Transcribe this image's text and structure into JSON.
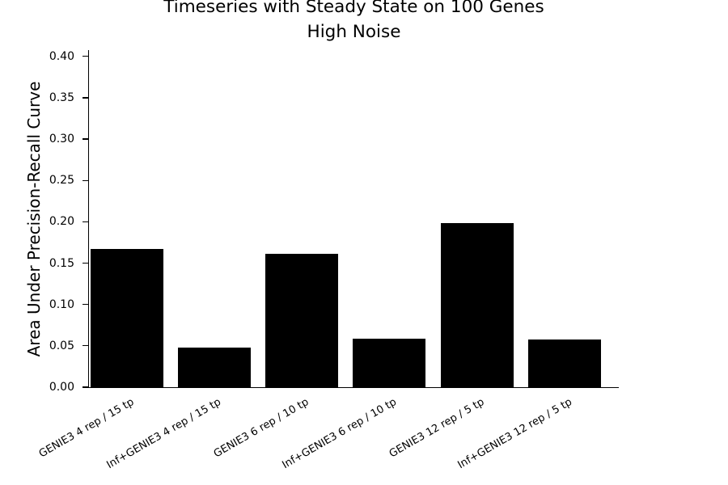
{
  "chart_data": {
    "type": "bar",
    "title": "Timeseries with Steady State on 100 Genes",
    "subtitle": "High Noise",
    "ylabel": "Area Under Precision-Recall Curve",
    "xlabel": "",
    "categories": [
      "GENIE3 4 rep / 15 tp",
      "Inf+GENIE3 4 rep / 15 tp",
      "GENIE3 6 rep / 10 tp",
      "Inf+GENIE3 6 rep / 10 tp",
      "GENIE3 12 rep / 5 tp",
      "Inf+GENIE3 12 rep / 5 tp"
    ],
    "values": [
      0.167,
      0.048,
      0.161,
      0.059,
      0.198,
      0.058
    ],
    "ylim": [
      0,
      0.408
    ],
    "yticks": [
      0.0,
      0.05,
      0.1,
      0.15,
      0.2,
      0.25,
      0.3,
      0.35,
      0.4
    ],
    "ytick_labels": [
      "0.00",
      "0.05",
      "0.10",
      "0.15",
      "0.20",
      "0.25",
      "0.30",
      "0.35",
      "0.40"
    ],
    "xtick_rotation_deg": 30,
    "grid": false,
    "legend": null,
    "bar_color": "#000000",
    "text_color": "#000000",
    "background_color": "#ffffff"
  }
}
